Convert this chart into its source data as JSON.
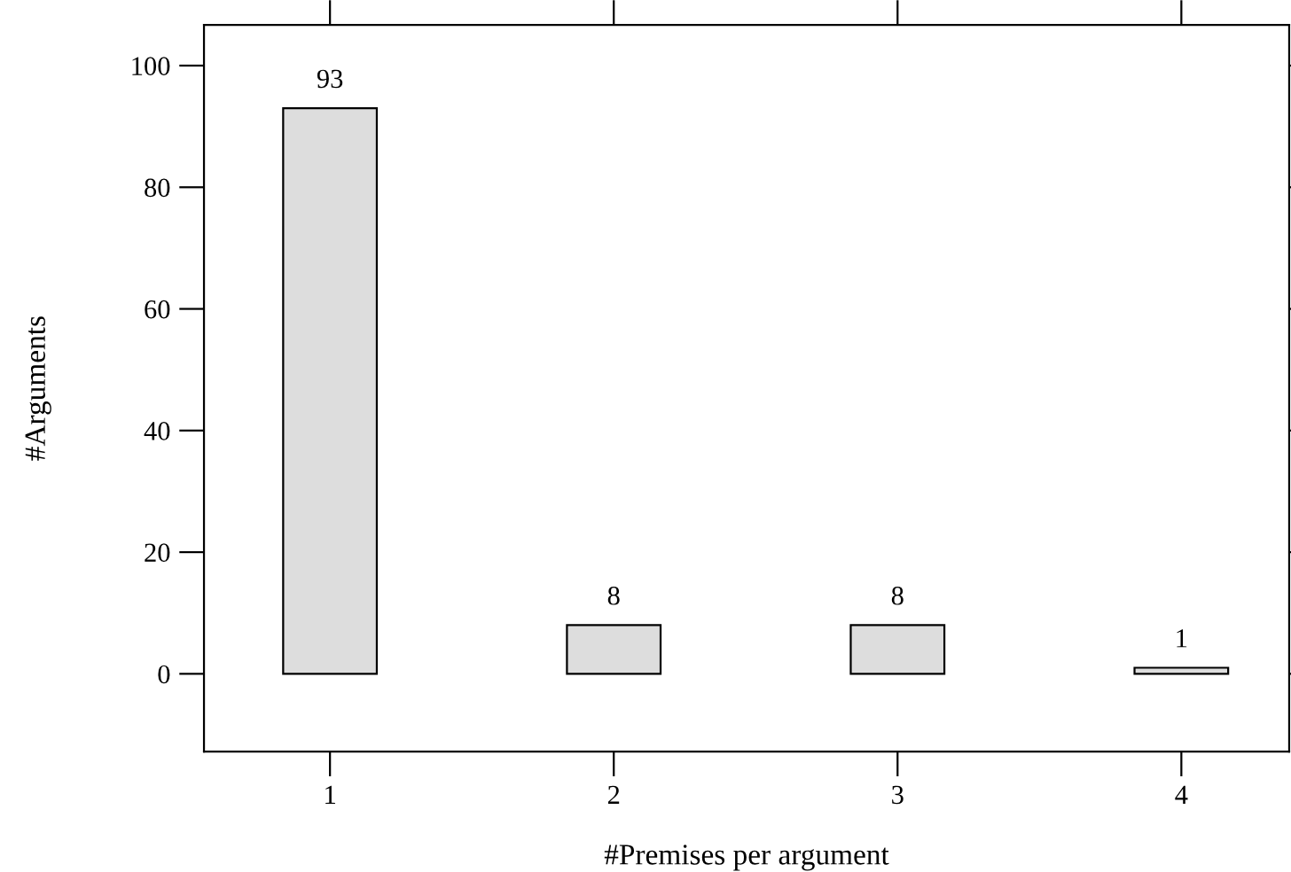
{
  "chart_data": {
    "type": "bar",
    "xlabel": "#Premises per argument",
    "ylabel": "#Arguments",
    "x": [
      1,
      2,
      3,
      4
    ],
    "values": [
      93,
      8,
      8,
      1
    ],
    "color": "#dddddd",
    "xlim": [
      0.556,
      4.38
    ],
    "ylim": [
      -12.8,
      106.7
    ],
    "xticks": [
      1,
      2,
      3,
      4
    ],
    "yticks": [
      0,
      20,
      40,
      60,
      80,
      100
    ],
    "data_labels": true,
    "grid": false,
    "legend": false
  }
}
